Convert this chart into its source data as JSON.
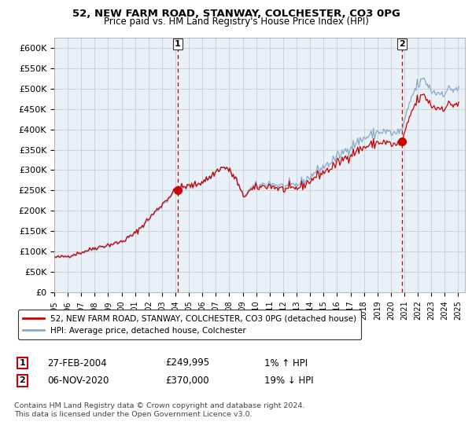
{
  "title": "52, NEW FARM ROAD, STANWAY, COLCHESTER, CO3 0PG",
  "subtitle": "Price paid vs. HM Land Registry's House Price Index (HPI)",
  "ylabel_ticks": [
    "£0",
    "£50K",
    "£100K",
    "£150K",
    "£200K",
    "£250K",
    "£300K",
    "£350K",
    "£400K",
    "£450K",
    "£500K",
    "£550K",
    "£600K"
  ],
  "ylim": [
    0,
    625000
  ],
  "xlim_start": 1995.0,
  "xlim_end": 2025.5,
  "purchase1_x": 2004.17,
  "purchase1_price": 249995,
  "purchase1_label": "1",
  "purchase2_x": 2020.84,
  "purchase2_price": 370000,
  "purchase2_label": "2",
  "legend_line1": "52, NEW FARM ROAD, STANWAY, COLCHESTER, CO3 0PG (detached house)",
  "legend_line2": "HPI: Average price, detached house, Colchester",
  "table_row1_num": "1",
  "table_row1_date": "27-FEB-2004",
  "table_row1_price": "£249,995",
  "table_row1_hpi": "1% ↑ HPI",
  "table_row2_num": "2",
  "table_row2_date": "06-NOV-2020",
  "table_row2_price": "£370,000",
  "table_row2_hpi": "19% ↓ HPI",
  "footnote": "Contains HM Land Registry data © Crown copyright and database right 2024.\nThis data is licensed under the Open Government Licence v3.0.",
  "line_color_red": "#cc0000",
  "line_color_blue": "#88aacc",
  "dot_color": "#cc0000",
  "vline_color": "#cc0000",
  "grid_color": "#cccccc",
  "bg_chart": "#e8f0f8",
  "background_color": "#ffffff"
}
